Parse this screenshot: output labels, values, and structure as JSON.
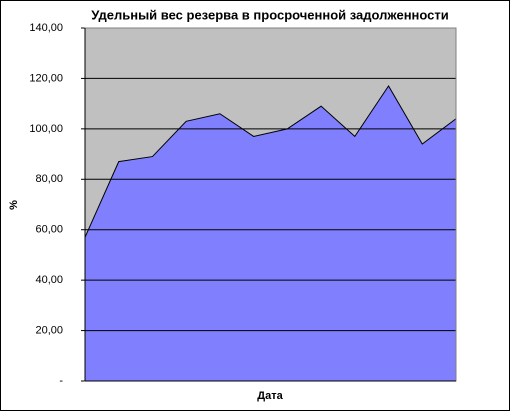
{
  "chart_data": {
    "type": "area",
    "title": "Удельный вес резерва в просроченной задолженности",
    "x_label": "Дата",
    "y_label": "%",
    "categories": [
      null,
      null,
      null,
      null,
      null,
      null,
      null,
      null,
      null,
      null,
      null,
      null
    ],
    "series": [
      {
        "name": null,
        "color": "#8080ff",
        "values": [
          57,
          87,
          89,
          103,
          106,
          97,
          100,
          109,
          97,
          117,
          94,
          104
        ]
      }
    ],
    "ylim": [
      0,
      140
    ],
    "yticks": [
      {
        "value": 0,
        "label": "-"
      },
      {
        "value": 20,
        "label": "20,00"
      },
      {
        "value": 40,
        "label": "40,00"
      },
      {
        "value": 60,
        "label": "60,00"
      },
      {
        "value": 80,
        "label": "80,00"
      },
      {
        "value": 100,
        "label": "100,00"
      },
      {
        "value": 120,
        "label": "120,00"
      },
      {
        "value": 140,
        "label": "140,00"
      }
    ],
    "grid": true,
    "plot_background": "#c0c0c0"
  }
}
